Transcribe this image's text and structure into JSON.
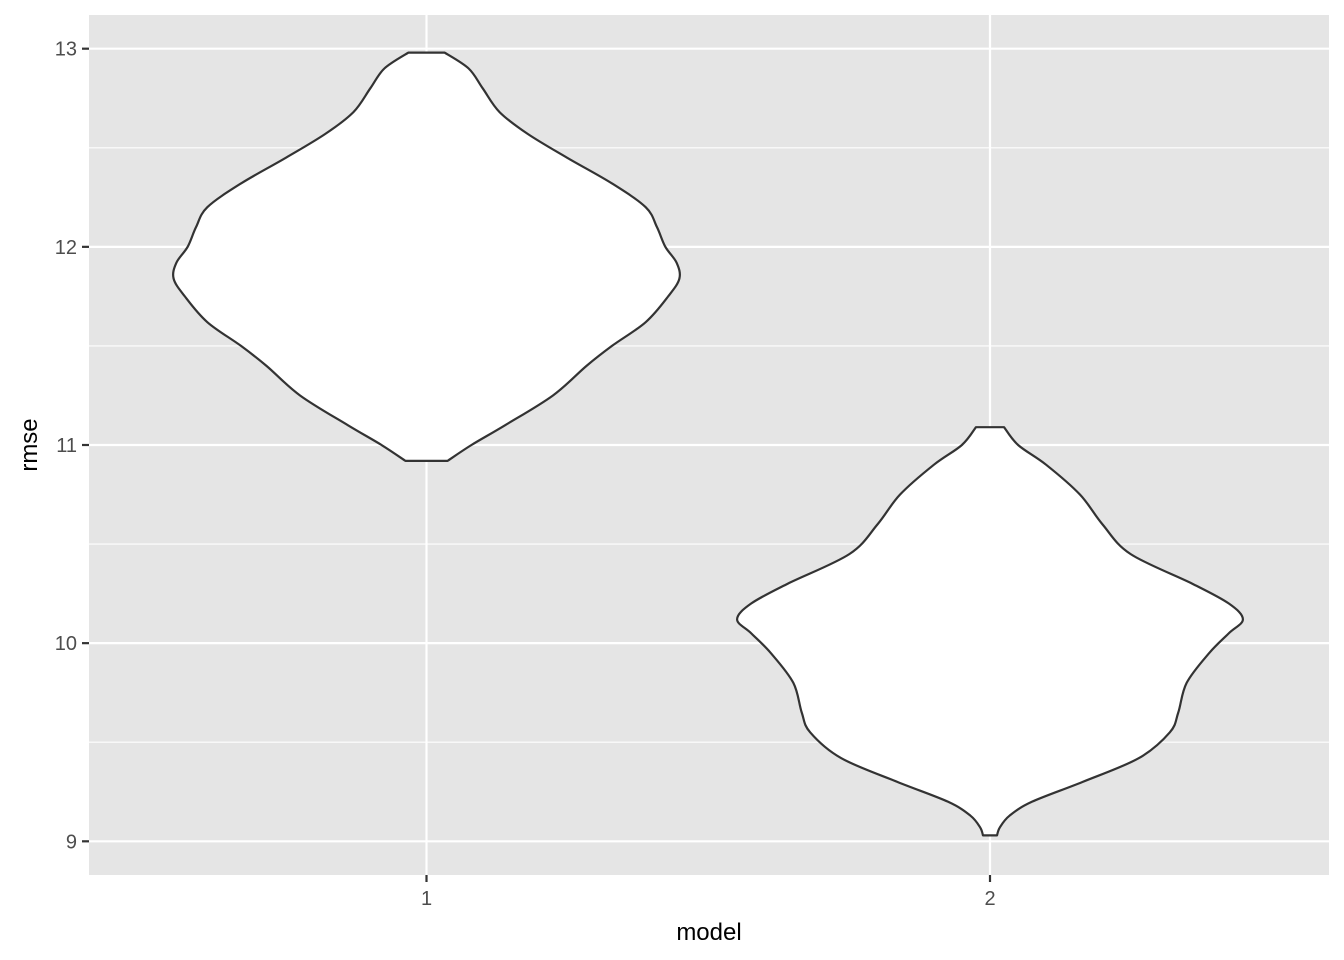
{
  "chart_data": {
    "type": "violin",
    "title": "",
    "xlabel": "model",
    "ylabel": "rmse",
    "categories": [
      "1",
      "2"
    ],
    "ylim": [
      8.83,
      13.17
    ],
    "y_ticks": [
      9,
      10,
      11,
      12,
      13
    ],
    "y_minor_ticks": [
      9.5,
      10.5,
      11.5,
      12.5
    ],
    "grid": true,
    "legend": "none",
    "colors": {
      "panel": "#e5e5e5",
      "grid": "#ffffff",
      "violin_fill": "#ffffff",
      "violin_outline": "#333333"
    },
    "violins": [
      {
        "category": "1",
        "y_min": 10.92,
        "y_max": 12.98,
        "profile": [
          [
            10.92,
            0.075
          ],
          [
            11.0,
            0.16
          ],
          [
            11.1,
            0.28
          ],
          [
            11.25,
            0.45
          ],
          [
            11.4,
            0.57
          ],
          [
            11.5,
            0.66
          ],
          [
            11.62,
            0.78
          ],
          [
            11.75,
            0.86
          ],
          [
            11.84,
            0.9
          ],
          [
            11.92,
            0.89
          ],
          [
            12.0,
            0.85
          ],
          [
            12.1,
            0.82
          ],
          [
            12.2,
            0.78
          ],
          [
            12.32,
            0.66
          ],
          [
            12.45,
            0.5
          ],
          [
            12.57,
            0.36
          ],
          [
            12.68,
            0.26
          ],
          [
            12.8,
            0.2
          ],
          [
            12.9,
            0.15
          ],
          [
            12.98,
            0.065
          ]
        ]
      },
      {
        "category": "2",
        "y_min": 9.03,
        "y_max": 11.09,
        "profile": [
          [
            9.03,
            0.025
          ],
          [
            9.07,
            0.035
          ],
          [
            9.13,
            0.07
          ],
          [
            9.2,
            0.15
          ],
          [
            9.3,
            0.33
          ],
          [
            9.42,
            0.53
          ],
          [
            9.55,
            0.64
          ],
          [
            9.65,
            0.67
          ],
          [
            9.8,
            0.7
          ],
          [
            9.95,
            0.78
          ],
          [
            10.05,
            0.85
          ],
          [
            10.12,
            0.9
          ],
          [
            10.2,
            0.85
          ],
          [
            10.3,
            0.72
          ],
          [
            10.45,
            0.5
          ],
          [
            10.6,
            0.4
          ],
          [
            10.75,
            0.32
          ],
          [
            10.9,
            0.2
          ],
          [
            11.0,
            0.1
          ],
          [
            11.09,
            0.05
          ]
        ]
      }
    ]
  }
}
